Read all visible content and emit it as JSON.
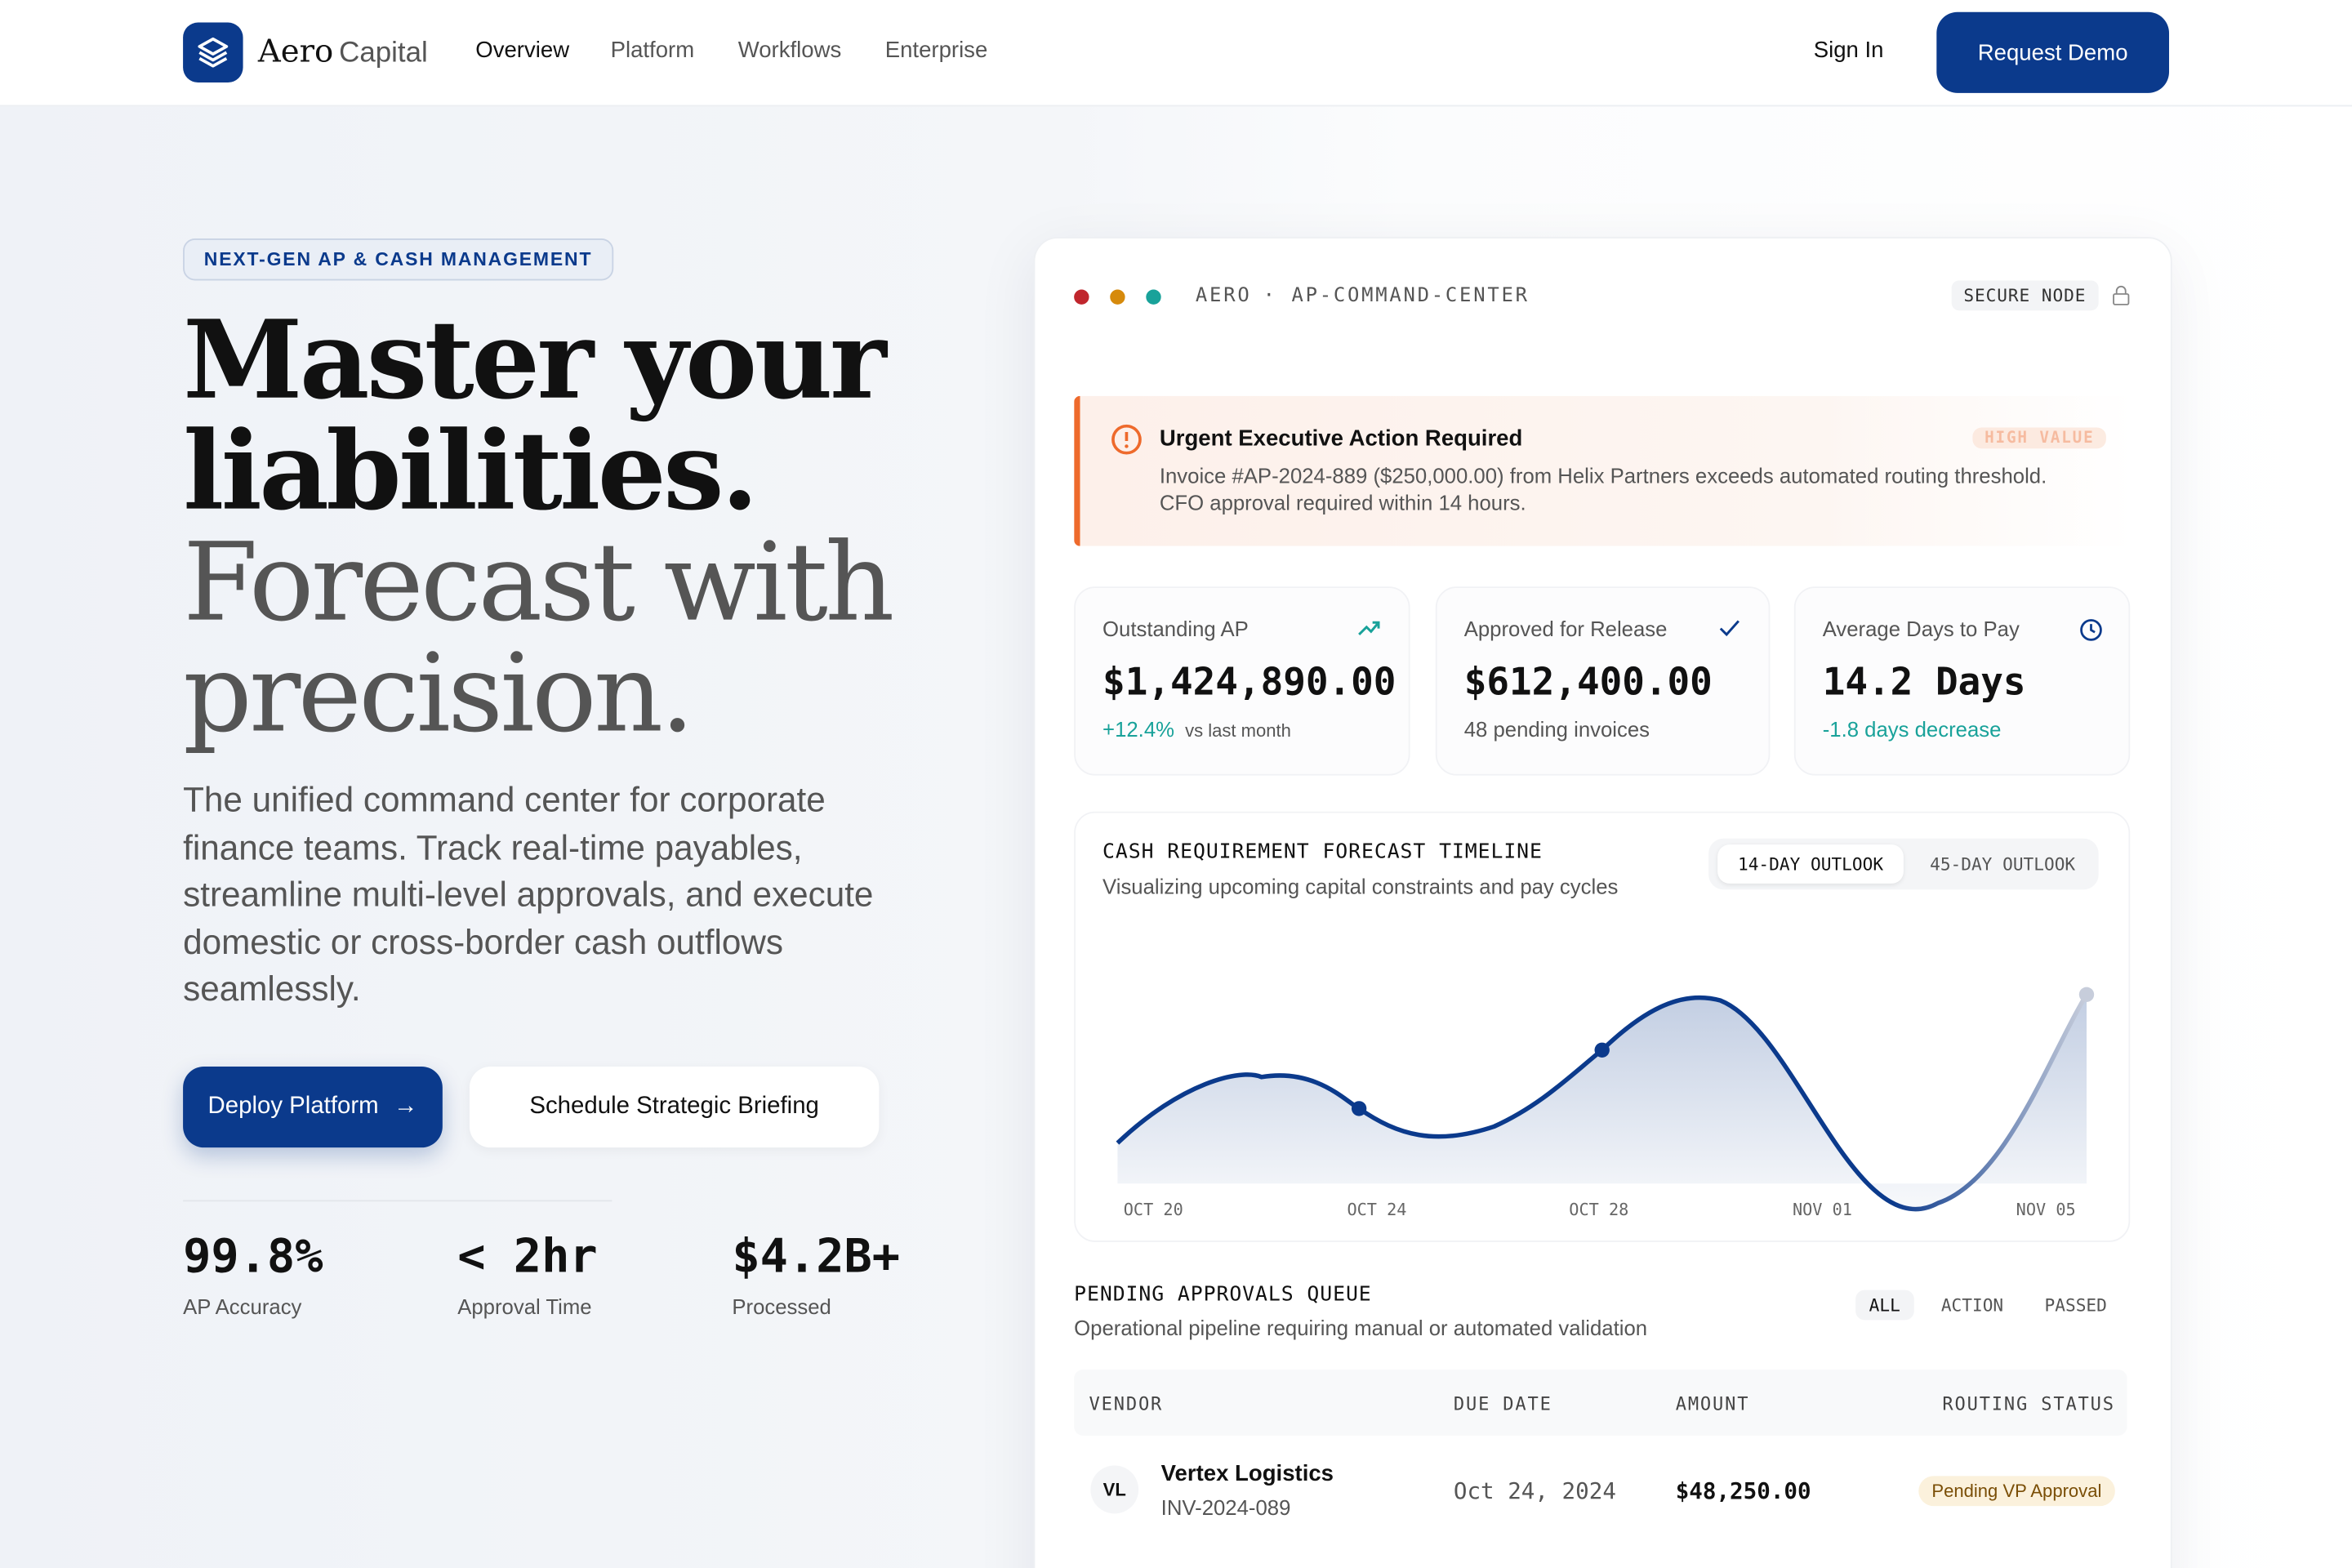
{
  "nav": {
    "brand": [
      "Aero",
      "Capital"
    ],
    "links": [
      "Overview",
      "Platform",
      "Workflows",
      "Enterprise"
    ],
    "sign_in": "Sign In",
    "cta": "Request Demo"
  },
  "hero": {
    "badge": "NEXT-GEN AP & CASH MANAGEMENT",
    "title": [
      "Master your",
      "liabilities.",
      "Forecast with",
      "precision."
    ],
    "description": "The unified command center for corporate finance teams. Track real-time payables, streamline multi-level approvals, and execute domestic or cross-border cash outflows seamlessly.",
    "primary_button": "Deploy Platform",
    "secondary_button": "Schedule Strategic Briefing",
    "stats": [
      {
        "value": "99.8%",
        "label": "AP Accuracy"
      },
      {
        "value": "< 2hr",
        "label": "Approval Time"
      },
      {
        "value": "$4.2B+",
        "label": "Processed"
      }
    ]
  },
  "panel": {
    "brand": "AERO",
    "separator": "·",
    "name": "AP-COMMAND-CENTER",
    "secure": "SECURE NODE",
    "alert": {
      "title": "Urgent Executive Action Required",
      "tag": "HIGH VALUE",
      "lines": [
        "Invoice #AP-2024-889 ($250,000.00) from Helix Partners exceeds automated routing threshold.",
        "CFO approval required within 14 hours."
      ]
    },
    "kpis": [
      {
        "label": "Outstanding AP",
        "value": "$1,424,890.00",
        "delta": "+12.4%",
        "note": "vs last month"
      },
      {
        "label": "Approved for Release",
        "value": "$612,400.00",
        "note": "48 pending invoices"
      },
      {
        "label": "Average Days to Pay",
        "value": "14.2 Days",
        "delta": "-1.8 days decrease"
      }
    ],
    "forecast": {
      "title": "CASH REQUIREMENT FORECAST TIMELINE",
      "subtitle": "Visualizing upcoming capital constraints and pay cycles",
      "tabs": [
        "14-DAY OUTLOOK",
        "45-DAY OUTLOOK"
      ],
      "x_labels": [
        "OCT 20",
        "OCT 24",
        "OCT 28",
        "NOV 01",
        "NOV 05"
      ]
    },
    "queue": {
      "title": "PENDING APPROVALS QUEUE",
      "subtitle": "Operational pipeline requiring manual or automated validation",
      "filters": [
        "ALL",
        "ACTION",
        "PASSED"
      ],
      "columns": [
        "VENDOR",
        "DUE DATE",
        "AMOUNT",
        "ROUTING STATUS"
      ],
      "rows": [
        {
          "initials": "VL",
          "vendor": "Vertex Logistics",
          "invoice": "INV-2024-089",
          "due": "Oct 24, 2024",
          "amount": "$48,250.00",
          "status": "Pending VP Approval"
        }
      ]
    }
  }
}
